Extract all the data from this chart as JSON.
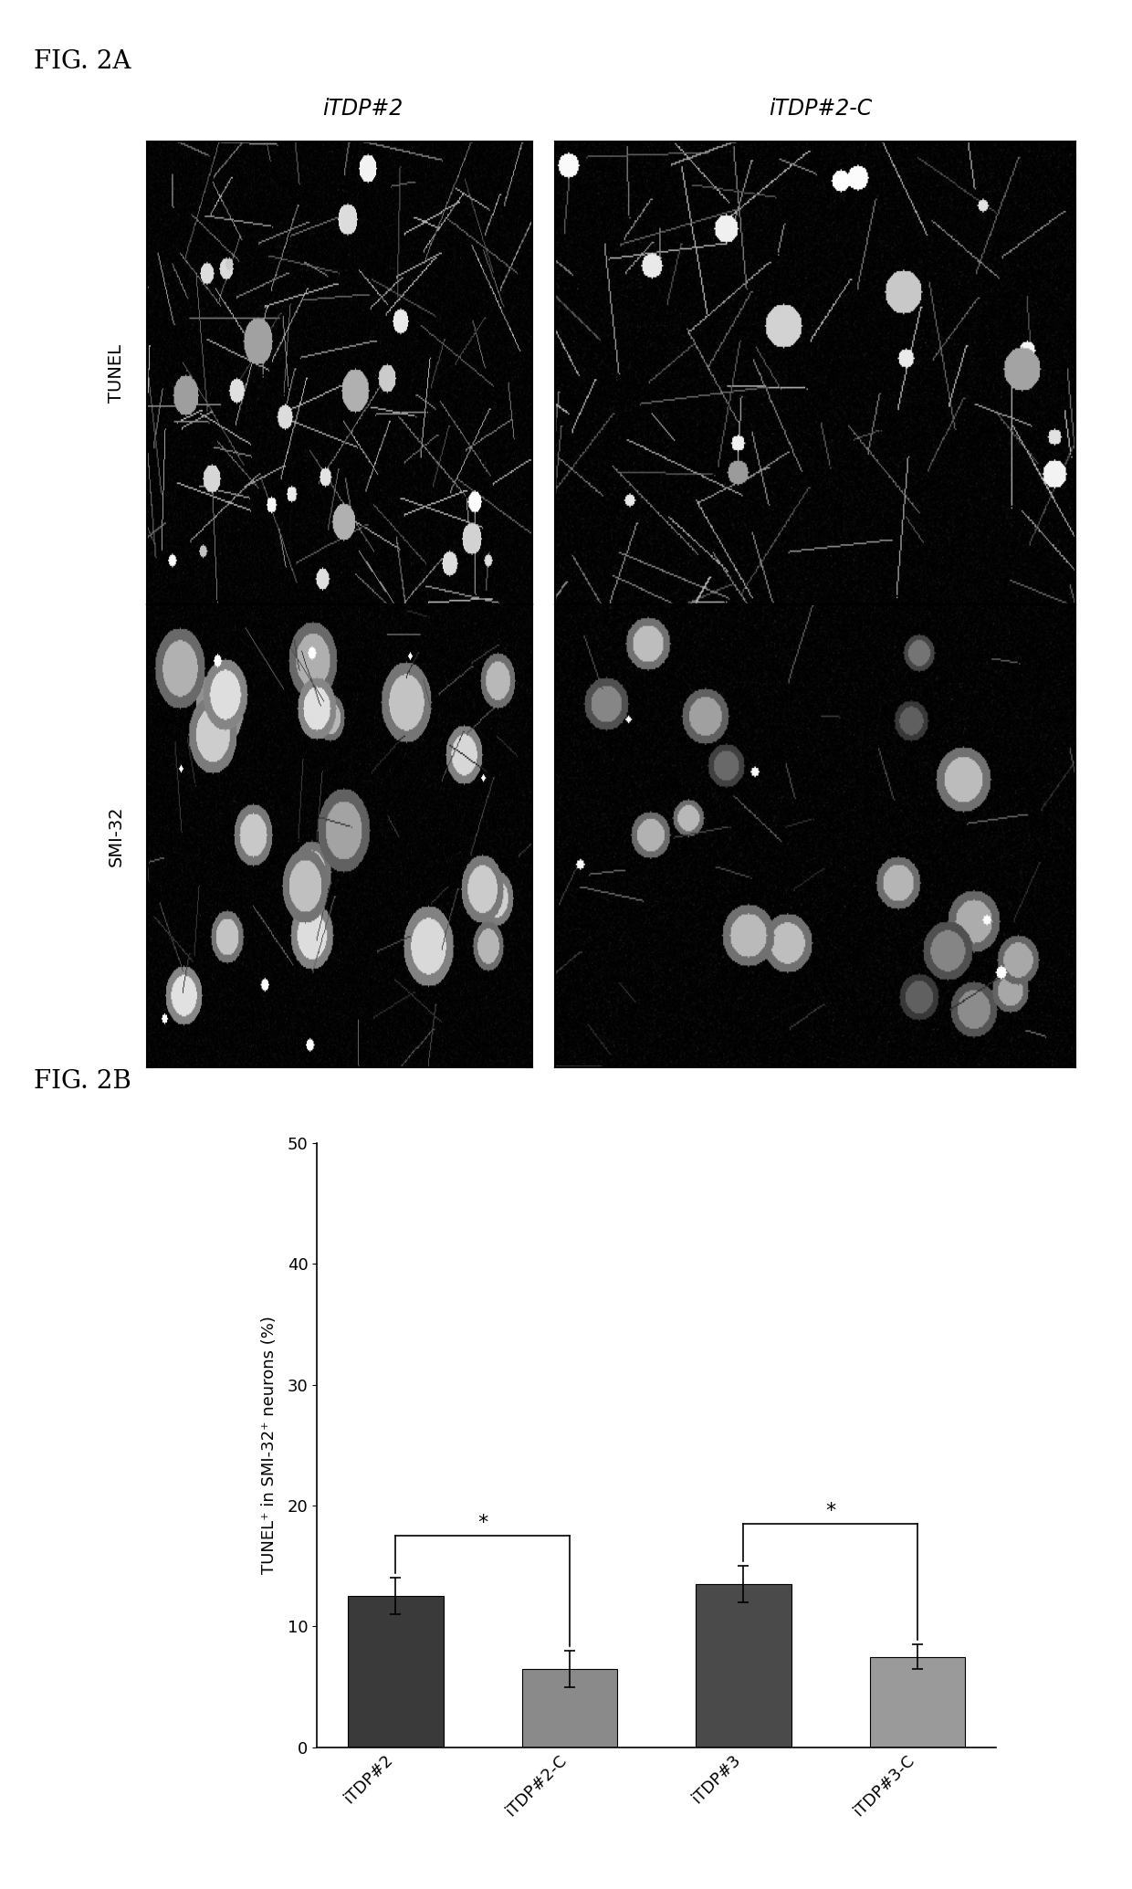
{
  "fig_label_A": "FIG. 2A",
  "fig_label_B": "FIG. 2B",
  "panel_A": {
    "col_labels": [
      "iTDP#2",
      "iTDP#2-C"
    ],
    "row_labels": [
      "TUNEL",
      "SMI-32"
    ],
    "bg_color": "#000000",
    "text_color": "#ffffff"
  },
  "panel_B": {
    "categories": [
      "iTDP#2",
      "iTDP#2-C",
      "iTDP#3",
      "iTDP#3-C"
    ],
    "values": [
      12.5,
      6.5,
      13.5,
      7.5
    ],
    "errors": [
      1.5,
      1.5,
      1.5,
      1.0
    ],
    "bar_colors": [
      "#3a3a3a",
      "#8a8a8a",
      "#4a4a4a",
      "#9a9a9a"
    ],
    "ylabel": "TUNEL⁺ in SMI-32⁺ neurons (%)",
    "ylim": [
      0,
      50
    ],
    "yticks": [
      0,
      10,
      20,
      30,
      40,
      50
    ],
    "sig_label": "*",
    "background_color": "#ffffff",
    "bar_width": 0.55
  }
}
